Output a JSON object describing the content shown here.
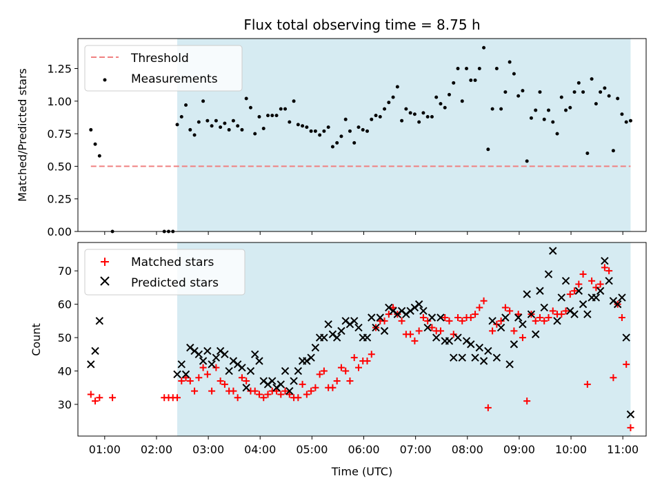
{
  "chart_data": [
    {
      "type": "scatter",
      "title": "Flux total observing time = 8.75 h",
      "xlabel": "",
      "ylabel": "Matched/Predicted stars",
      "xlim": [
        "00:29",
        "11:27"
      ],
      "ylim": [
        0,
        1.48
      ],
      "yticks": [
        0.0,
        0.25,
        0.5,
        0.75,
        1.0,
        1.25
      ],
      "ytick_labels": [
        "0.00",
        "0.25",
        "0.50",
        "0.75",
        "1.00",
        "1.25"
      ],
      "shaded_interval": [
        "02:24",
        "11:09"
      ],
      "legend": {
        "position": "top-left",
        "entries": [
          "Threshold",
          "Measurements"
        ]
      },
      "series": [
        {
          "name": "Threshold",
          "kind": "dashed-line",
          "color": "#f08080",
          "x": [
            "00:44",
            "11:09"
          ],
          "y": [
            0.5,
            0.5
          ]
        },
        {
          "name": "Measurements",
          "kind": "dot",
          "color": "#000000",
          "x": [
            "00:44",
            "00:49",
            "00:54",
            "01:09",
            "02:09",
            "02:14",
            "02:19",
            "02:24",
            "02:29",
            "02:34",
            "02:39",
            "02:44",
            "02:49",
            "02:54",
            "02:59",
            "03:04",
            "03:09",
            "03:14",
            "03:19",
            "03:24",
            "03:29",
            "03:34",
            "03:39",
            "03:44",
            "03:49",
            "03:54",
            "03:59",
            "04:04",
            "04:09",
            "04:14",
            "04:19",
            "04:24",
            "04:29",
            "04:34",
            "04:39",
            "04:44",
            "04:49",
            "04:54",
            "04:59",
            "05:04",
            "05:09",
            "05:14",
            "05:19",
            "05:24",
            "05:29",
            "05:34",
            "05:39",
            "05:44",
            "05:49",
            "05:54",
            "05:59",
            "06:04",
            "06:09",
            "06:14",
            "06:19",
            "06:24",
            "06:29",
            "06:34",
            "06:39",
            "06:44",
            "06:49",
            "06:54",
            "06:59",
            "07:04",
            "07:09",
            "07:14",
            "07:19",
            "07:24",
            "07:29",
            "07:34",
            "07:39",
            "07:44",
            "07:49",
            "07:54",
            "07:59",
            "08:04",
            "08:09",
            "08:14",
            "08:19",
            "08:24",
            "08:29",
            "08:34",
            "08:39",
            "08:44",
            "08:49",
            "08:54",
            "08:59",
            "09:04",
            "09:09",
            "09:14",
            "09:19",
            "09:24",
            "09:29",
            "09:34",
            "09:39",
            "09:44",
            "09:49",
            "09:54",
            "09:59",
            "10:04",
            "10:09",
            "10:14",
            "10:19",
            "10:24",
            "10:29",
            "10:34",
            "10:39",
            "10:44",
            "10:49",
            "10:54",
            "10:59",
            "11:04",
            "11:09"
          ],
          "y": [
            0.78,
            0.67,
            0.58,
            0.0,
            0.0,
            0.0,
            0.0,
            0.82,
            0.88,
            0.97,
            0.78,
            0.74,
            0.84,
            1.0,
            0.85,
            0.81,
            0.85,
            0.8,
            0.83,
            0.78,
            0.85,
            0.81,
            0.78,
            1.02,
            0.95,
            0.75,
            0.88,
            0.79,
            0.89,
            0.89,
            0.89,
            0.94,
            0.94,
            0.84,
            1.0,
            0.82,
            0.81,
            0.8,
            0.77,
            0.77,
            0.74,
            0.77,
            0.8,
            0.65,
            0.68,
            0.73,
            0.86,
            0.77,
            0.68,
            0.8,
            0.78,
            0.77,
            0.86,
            0.89,
            0.88,
            0.94,
            0.99,
            1.03,
            1.11,
            0.85,
            0.94,
            0.91,
            0.9,
            0.84,
            0.91,
            0.88,
            0.88,
            1.03,
            0.98,
            0.95,
            1.05,
            1.14,
            1.25,
            1.0,
            1.25,
            1.16,
            1.16,
            1.25,
            1.41,
            0.63,
            0.94,
            1.25,
            0.94,
            1.07,
            1.3,
            1.21,
            1.04,
            1.08,
            0.54,
            0.87,
            0.93,
            1.07,
            0.86,
            0.93,
            0.84,
            0.75,
            1.03,
            0.93,
            0.95,
            1.07,
            1.14,
            1.07,
            0.6,
            1.17,
            0.98,
            1.07,
            1.1,
            1.04,
            0.62,
            1.02,
            0.9,
            0.84,
            0.85
          ]
        }
      ]
    },
    {
      "type": "scatter",
      "title": "",
      "xlabel": "Time (UTC)",
      "ylabel": "Count",
      "xlim": [
        "00:29",
        "11:27"
      ],
      "ylim": [
        20.5,
        78.5
      ],
      "xtick_labels": [
        "01:00",
        "02:00",
        "03:00",
        "04:00",
        "05:00",
        "06:00",
        "07:00",
        "08:00",
        "09:00",
        "10:00",
        "11:00"
      ],
      "yticks": [
        30,
        40,
        50,
        60,
        70
      ],
      "ytick_labels": [
        "30",
        "40",
        "50",
        "60",
        "70"
      ],
      "shaded_interval": [
        "02:24",
        "11:09"
      ],
      "legend": {
        "position": "top-left",
        "entries": [
          "Matched stars",
          "Predicted stars"
        ]
      },
      "series": [
        {
          "name": "Matched stars",
          "marker": "+",
          "color": "#ff0000",
          "x": [
            "00:44",
            "00:49",
            "00:54",
            "01:09",
            "02:09",
            "02:14",
            "02:19",
            "02:24",
            "02:29",
            "02:34",
            "02:39",
            "02:44",
            "02:49",
            "02:54",
            "02:59",
            "03:04",
            "03:09",
            "03:14",
            "03:19",
            "03:24",
            "03:29",
            "03:34",
            "03:39",
            "03:44",
            "03:49",
            "03:54",
            "03:59",
            "04:04",
            "04:09",
            "04:14",
            "04:19",
            "04:24",
            "04:29",
            "04:34",
            "04:39",
            "04:44",
            "04:49",
            "04:54",
            "04:59",
            "05:04",
            "05:09",
            "05:14",
            "05:19",
            "05:24",
            "05:29",
            "05:34",
            "05:39",
            "05:44",
            "05:49",
            "05:54",
            "05:59",
            "06:04",
            "06:09",
            "06:14",
            "06:19",
            "06:24",
            "06:29",
            "06:34",
            "06:39",
            "06:44",
            "06:49",
            "06:54",
            "06:59",
            "07:04",
            "07:09",
            "07:14",
            "07:19",
            "07:24",
            "07:29",
            "07:34",
            "07:39",
            "07:44",
            "07:49",
            "07:54",
            "07:59",
            "08:04",
            "08:09",
            "08:14",
            "08:19",
            "08:24",
            "08:29",
            "08:34",
            "08:39",
            "08:44",
            "08:49",
            "08:54",
            "08:59",
            "09:04",
            "09:09",
            "09:14",
            "09:19",
            "09:24",
            "09:29",
            "09:34",
            "09:39",
            "09:44",
            "09:49",
            "09:54",
            "09:59",
            "10:04",
            "10:09",
            "10:14",
            "10:19",
            "10:24",
            "10:29",
            "10:34",
            "10:39",
            "10:44",
            "10:49",
            "10:54",
            "10:59",
            "11:04",
            "11:09"
          ],
          "y": [
            33,
            31,
            32,
            32,
            32,
            32,
            32,
            32,
            37,
            38,
            37,
            34,
            38,
            41,
            39,
            34,
            41,
            37,
            36,
            34,
            34,
            32,
            38,
            37,
            34,
            34,
            33,
            32,
            33,
            34,
            34,
            33,
            34,
            33,
            32,
            32,
            36,
            33,
            34,
            35,
            39,
            40,
            35,
            35,
            37,
            41,
            40,
            37,
            44,
            41,
            43,
            43,
            45,
            53,
            55,
            55,
            57,
            59,
            57,
            55,
            51,
            51,
            49,
            52,
            56,
            55,
            53,
            52,
            52,
            56,
            55,
            51,
            56,
            55,
            56,
            56,
            57,
            59,
            61,
            29,
            52,
            54,
            55,
            59,
            58,
            52,
            57,
            50,
            31,
            57,
            55,
            56,
            55,
            56,
            58,
            57,
            57,
            58,
            63,
            64,
            66,
            69,
            36,
            67,
            65,
            66,
            71,
            70,
            38,
            60,
            56,
            42,
            23
          ]
        },
        {
          "name": "Predicted stars",
          "marker": "x",
          "color": "#000000",
          "x": [
            "00:44",
            "00:49",
            "00:54",
            "02:24",
            "02:29",
            "02:34",
            "02:39",
            "02:44",
            "02:49",
            "02:54",
            "02:59",
            "03:04",
            "03:09",
            "03:14",
            "03:19",
            "03:24",
            "03:29",
            "03:34",
            "03:39",
            "03:44",
            "03:49",
            "03:54",
            "03:59",
            "04:04",
            "04:09",
            "04:14",
            "04:19",
            "04:24",
            "04:29",
            "04:34",
            "04:39",
            "04:44",
            "04:49",
            "04:54",
            "04:59",
            "05:04",
            "05:09",
            "05:14",
            "05:19",
            "05:24",
            "05:29",
            "05:34",
            "05:39",
            "05:44",
            "05:49",
            "05:54",
            "05:59",
            "06:04",
            "06:09",
            "06:14",
            "06:19",
            "06:24",
            "06:29",
            "06:34",
            "06:39",
            "06:44",
            "06:49",
            "06:54",
            "06:59",
            "07:04",
            "07:09",
            "07:14",
            "07:19",
            "07:24",
            "07:29",
            "07:34",
            "07:39",
            "07:44",
            "07:49",
            "07:54",
            "07:59",
            "08:04",
            "08:09",
            "08:14",
            "08:19",
            "08:24",
            "08:29",
            "08:34",
            "08:39",
            "08:44",
            "08:49",
            "08:54",
            "08:59",
            "09:04",
            "09:09",
            "09:14",
            "09:19",
            "09:24",
            "09:29",
            "09:34",
            "09:39",
            "09:44",
            "09:49",
            "09:54",
            "09:59",
            "10:04",
            "10:09",
            "10:14",
            "10:19",
            "10:24",
            "10:29",
            "10:34",
            "10:39",
            "10:44",
            "10:49",
            "10:54",
            "10:59",
            "11:04",
            "11:09"
          ],
          "y": [
            42,
            46,
            55,
            39,
            42,
            39,
            47,
            46,
            45,
            43,
            46,
            42,
            44,
            46,
            45,
            40,
            43,
            42,
            41,
            35,
            40,
            45,
            43,
            37,
            36,
            37,
            35,
            36,
            40,
            34,
            37,
            40,
            43,
            43,
            44,
            47,
            50,
            50,
            54,
            51,
            50,
            52,
            55,
            54,
            55,
            53,
            50,
            50,
            56,
            53,
            56,
            52,
            59,
            58,
            57,
            58,
            57,
            58,
            59,
            60,
            58,
            53,
            56,
            50,
            56,
            49,
            49,
            44,
            50,
            44,
            49,
            48,
            44,
            47,
            43,
            46,
            55,
            44,
            53,
            56,
            42,
            48,
            56,
            54,
            63,
            57,
            51,
            64,
            59,
            69,
            76,
            55,
            62,
            67,
            58,
            57,
            64,
            60,
            57,
            62,
            62,
            64,
            73,
            67,
            61,
            60,
            62,
            50,
            27
          ]
        }
      ]
    }
  ]
}
